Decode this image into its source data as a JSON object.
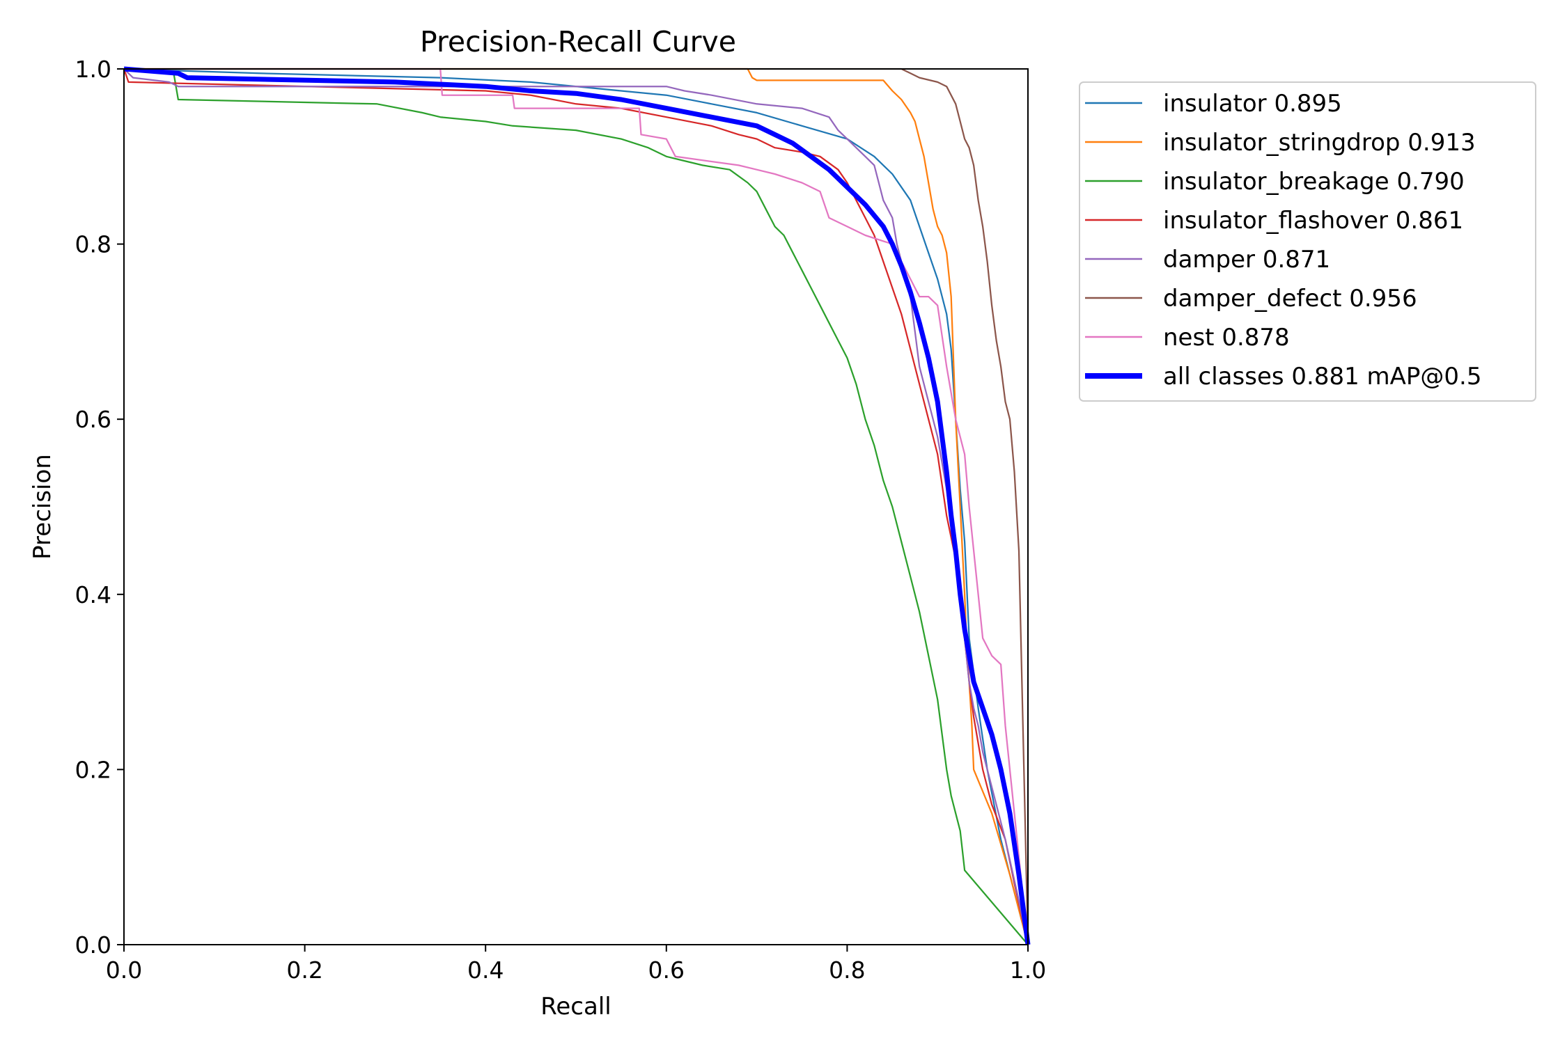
{
  "chart_data": {
    "type": "line",
    "title": "Precision-Recall Curve",
    "xlabel": "Recall",
    "ylabel": "Precision",
    "xlim": [
      0,
      1
    ],
    "ylim": [
      0,
      1
    ],
    "xticks": [
      "0.0",
      "0.2",
      "0.4",
      "0.6",
      "0.8",
      "1.0"
    ],
    "yticks": [
      "0.0",
      "0.2",
      "0.4",
      "0.6",
      "0.8",
      "1.0"
    ],
    "legend_position": "outside-right",
    "series": [
      {
        "name": "insulator",
        "score": "0.895",
        "label": "insulator 0.895",
        "color": "#1f77b4",
        "width": 1.5,
        "points": [
          [
            0,
            1.0
          ],
          [
            0.15,
            0.995
          ],
          [
            0.35,
            0.99
          ],
          [
            0.45,
            0.985
          ],
          [
            0.55,
            0.975
          ],
          [
            0.6,
            0.97
          ],
          [
            0.65,
            0.96
          ],
          [
            0.7,
            0.95
          ],
          [
            0.75,
            0.935
          ],
          [
            0.8,
            0.92
          ],
          [
            0.83,
            0.9
          ],
          [
            0.85,
            0.88
          ],
          [
            0.87,
            0.85
          ],
          [
            0.88,
            0.82
          ],
          [
            0.89,
            0.79
          ],
          [
            0.9,
            0.76
          ],
          [
            0.91,
            0.72
          ],
          [
            0.915,
            0.68
          ],
          [
            0.92,
            0.6
          ],
          [
            0.925,
            0.52
          ],
          [
            0.93,
            0.46
          ],
          [
            0.935,
            0.35
          ],
          [
            0.945,
            0.27
          ],
          [
            0.955,
            0.2
          ],
          [
            0.97,
            0.12
          ],
          [
            0.985,
            0.06
          ],
          [
            1.0,
            0.0
          ]
        ]
      },
      {
        "name": "insulator_stringdrop",
        "score": "0.913",
        "label": "insulator_stringdrop 0.913",
        "color": "#ff7f0e",
        "width": 1.5,
        "points": [
          [
            0,
            1.0
          ],
          [
            0.69,
            1.0
          ],
          [
            0.695,
            0.99
          ],
          [
            0.7,
            0.987
          ],
          [
            0.84,
            0.987
          ],
          [
            0.85,
            0.975
          ],
          [
            0.86,
            0.965
          ],
          [
            0.87,
            0.95
          ],
          [
            0.875,
            0.94
          ],
          [
            0.88,
            0.92
          ],
          [
            0.885,
            0.9
          ],
          [
            0.89,
            0.87
          ],
          [
            0.895,
            0.84
          ],
          [
            0.9,
            0.82
          ],
          [
            0.905,
            0.81
          ],
          [
            0.91,
            0.79
          ],
          [
            0.915,
            0.74
          ],
          [
            0.92,
            0.6
          ],
          [
            0.925,
            0.5
          ],
          [
            0.93,
            0.4
          ],
          [
            0.932,
            0.35
          ],
          [
            0.935,
            0.3
          ],
          [
            0.938,
            0.25
          ],
          [
            0.94,
            0.2
          ],
          [
            0.96,
            0.15
          ],
          [
            0.98,
            0.08
          ],
          [
            1.0,
            0.0
          ]
        ]
      },
      {
        "name": "insulator_breakage",
        "score": "0.790",
        "label": "insulator_breakage 0.790",
        "color": "#2ca02c",
        "width": 1.5,
        "points": [
          [
            0,
            1.0
          ],
          [
            0.055,
            0.995
          ],
          [
            0.06,
            0.965
          ],
          [
            0.28,
            0.96
          ],
          [
            0.33,
            0.95
          ],
          [
            0.35,
            0.945
          ],
          [
            0.4,
            0.94
          ],
          [
            0.43,
            0.935
          ],
          [
            0.5,
            0.93
          ],
          [
            0.55,
            0.92
          ],
          [
            0.58,
            0.91
          ],
          [
            0.6,
            0.9
          ],
          [
            0.62,
            0.895
          ],
          [
            0.64,
            0.89
          ],
          [
            0.67,
            0.885
          ],
          [
            0.69,
            0.87
          ],
          [
            0.7,
            0.86
          ],
          [
            0.71,
            0.84
          ],
          [
            0.72,
            0.82
          ],
          [
            0.73,
            0.81
          ],
          [
            0.74,
            0.79
          ],
          [
            0.75,
            0.77
          ],
          [
            0.76,
            0.75
          ],
          [
            0.77,
            0.73
          ],
          [
            0.78,
            0.71
          ],
          [
            0.79,
            0.69
          ],
          [
            0.8,
            0.67
          ],
          [
            0.81,
            0.64
          ],
          [
            0.82,
            0.6
          ],
          [
            0.83,
            0.57
          ],
          [
            0.84,
            0.53
          ],
          [
            0.85,
            0.5
          ],
          [
            0.86,
            0.46
          ],
          [
            0.87,
            0.42
          ],
          [
            0.88,
            0.38
          ],
          [
            0.89,
            0.33
          ],
          [
            0.9,
            0.28
          ],
          [
            0.905,
            0.24
          ],
          [
            0.91,
            0.2
          ],
          [
            0.915,
            0.17
          ],
          [
            0.92,
            0.15
          ],
          [
            0.925,
            0.13
          ],
          [
            0.93,
            0.085
          ],
          [
            1.0,
            0.0
          ]
        ]
      },
      {
        "name": "insulator_flashover",
        "score": "0.861",
        "label": "insulator_flashover 0.861",
        "color": "#d62728",
        "width": 1.5,
        "points": [
          [
            0,
            1.0
          ],
          [
            0.005,
            0.985
          ],
          [
            0.4,
            0.975
          ],
          [
            0.45,
            0.97
          ],
          [
            0.5,
            0.96
          ],
          [
            0.55,
            0.955
          ],
          [
            0.6,
            0.945
          ],
          [
            0.65,
            0.935
          ],
          [
            0.68,
            0.925
          ],
          [
            0.7,
            0.92
          ],
          [
            0.72,
            0.91
          ],
          [
            0.75,
            0.905
          ],
          [
            0.77,
            0.9
          ],
          [
            0.79,
            0.885
          ],
          [
            0.8,
            0.87
          ],
          [
            0.81,
            0.85
          ],
          [
            0.82,
            0.83
          ],
          [
            0.83,
            0.81
          ],
          [
            0.84,
            0.78
          ],
          [
            0.85,
            0.75
          ],
          [
            0.86,
            0.72
          ],
          [
            0.87,
            0.68
          ],
          [
            0.88,
            0.64
          ],
          [
            0.89,
            0.6
          ],
          [
            0.9,
            0.56
          ],
          [
            0.91,
            0.49
          ],
          [
            0.92,
            0.44
          ],
          [
            0.925,
            0.4
          ],
          [
            0.93,
            0.35
          ],
          [
            0.935,
            0.3
          ],
          [
            0.94,
            0.26
          ],
          [
            0.945,
            0.23
          ],
          [
            0.95,
            0.2
          ],
          [
            0.96,
            0.16
          ],
          [
            0.975,
            0.12
          ],
          [
            0.985,
            0.07
          ],
          [
            1.0,
            0.0
          ]
        ]
      },
      {
        "name": "damper",
        "score": "0.871",
        "label": "damper 0.871",
        "color": "#9467bd",
        "width": 1.5,
        "points": [
          [
            0,
            1.0
          ],
          [
            0.01,
            0.99
          ],
          [
            0.05,
            0.985
          ],
          [
            0.06,
            0.98
          ],
          [
            0.3,
            0.98
          ],
          [
            0.5,
            0.98
          ],
          [
            0.6,
            0.98
          ],
          [
            0.62,
            0.975
          ],
          [
            0.65,
            0.97
          ],
          [
            0.7,
            0.96
          ],
          [
            0.75,
            0.955
          ],
          [
            0.78,
            0.945
          ],
          [
            0.79,
            0.93
          ],
          [
            0.8,
            0.92
          ],
          [
            0.81,
            0.91
          ],
          [
            0.82,
            0.9
          ],
          [
            0.83,
            0.89
          ],
          [
            0.835,
            0.87
          ],
          [
            0.84,
            0.85
          ],
          [
            0.85,
            0.83
          ],
          [
            0.855,
            0.8
          ],
          [
            0.86,
            0.78
          ],
          [
            0.87,
            0.74
          ],
          [
            0.875,
            0.7
          ],
          [
            0.88,
            0.66
          ],
          [
            0.89,
            0.62
          ],
          [
            0.9,
            0.58
          ],
          [
            0.905,
            0.55
          ],
          [
            0.91,
            0.52
          ],
          [
            0.915,
            0.48
          ],
          [
            0.92,
            0.44
          ],
          [
            0.925,
            0.4
          ],
          [
            0.93,
            0.35
          ],
          [
            0.935,
            0.3
          ],
          [
            0.94,
            0.27
          ],
          [
            0.945,
            0.25
          ],
          [
            0.95,
            0.22
          ],
          [
            0.96,
            0.18
          ],
          [
            0.975,
            0.12
          ],
          [
            0.99,
            0.05
          ],
          [
            1.0,
            0.0
          ]
        ]
      },
      {
        "name": "damper_defect",
        "score": "0.956",
        "label": "damper_defect 0.956",
        "color": "#8c564b",
        "width": 1.5,
        "points": [
          [
            0,
            1.0
          ],
          [
            0.86,
            1.0
          ],
          [
            0.87,
            0.995
          ],
          [
            0.88,
            0.99
          ],
          [
            0.9,
            0.985
          ],
          [
            0.91,
            0.98
          ],
          [
            0.92,
            0.96
          ],
          [
            0.925,
            0.94
          ],
          [
            0.93,
            0.92
          ],
          [
            0.935,
            0.91
          ],
          [
            0.94,
            0.89
          ],
          [
            0.945,
            0.85
          ],
          [
            0.95,
            0.82
          ],
          [
            0.955,
            0.78
          ],
          [
            0.96,
            0.73
          ],
          [
            0.965,
            0.69
          ],
          [
            0.97,
            0.66
          ],
          [
            0.975,
            0.62
          ],
          [
            0.98,
            0.6
          ],
          [
            0.985,
            0.54
          ],
          [
            0.99,
            0.45
          ],
          [
            1.0,
            0.0
          ]
        ]
      },
      {
        "name": "nest",
        "score": "0.878",
        "label": "nest 0.878",
        "color": "#e377c2",
        "width": 1.5,
        "points": [
          [
            0,
            1.0
          ],
          [
            0.35,
            1.0
          ],
          [
            0.352,
            0.97
          ],
          [
            0.43,
            0.97
          ],
          [
            0.432,
            0.955
          ],
          [
            0.57,
            0.955
          ],
          [
            0.572,
            0.925
          ],
          [
            0.6,
            0.92
          ],
          [
            0.61,
            0.9
          ],
          [
            0.68,
            0.89
          ],
          [
            0.7,
            0.885
          ],
          [
            0.72,
            0.88
          ],
          [
            0.75,
            0.87
          ],
          [
            0.77,
            0.86
          ],
          [
            0.78,
            0.83
          ],
          [
            0.8,
            0.82
          ],
          [
            0.82,
            0.81
          ],
          [
            0.85,
            0.8
          ],
          [
            0.86,
            0.78
          ],
          [
            0.87,
            0.76
          ],
          [
            0.88,
            0.74
          ],
          [
            0.89,
            0.74
          ],
          [
            0.9,
            0.73
          ],
          [
            0.91,
            0.66
          ],
          [
            0.92,
            0.6
          ],
          [
            0.93,
            0.56
          ],
          [
            0.935,
            0.5
          ],
          [
            0.94,
            0.45
          ],
          [
            0.945,
            0.4
          ],
          [
            0.95,
            0.35
          ],
          [
            0.96,
            0.33
          ],
          [
            0.97,
            0.32
          ],
          [
            0.975,
            0.25
          ],
          [
            0.98,
            0.2
          ],
          [
            0.99,
            0.1
          ],
          [
            1.0,
            0.0
          ]
        ]
      },
      {
        "name": "all classes",
        "score": "0.881 mAP@0.5",
        "label": "all classes 0.881 mAP@0.5",
        "color": "#0000ff",
        "width": 7,
        "points": [
          [
            0,
            1.0
          ],
          [
            0.06,
            0.995
          ],
          [
            0.07,
            0.99
          ],
          [
            0.3,
            0.985
          ],
          [
            0.4,
            0.98
          ],
          [
            0.45,
            0.975
          ],
          [
            0.5,
            0.972
          ],
          [
            0.55,
            0.965
          ],
          [
            0.6,
            0.955
          ],
          [
            0.65,
            0.945
          ],
          [
            0.7,
            0.935
          ],
          [
            0.72,
            0.925
          ],
          [
            0.74,
            0.915
          ],
          [
            0.76,
            0.9
          ],
          [
            0.78,
            0.885
          ],
          [
            0.8,
            0.865
          ],
          [
            0.82,
            0.845
          ],
          [
            0.84,
            0.82
          ],
          [
            0.85,
            0.8
          ],
          [
            0.86,
            0.775
          ],
          [
            0.87,
            0.745
          ],
          [
            0.88,
            0.71
          ],
          [
            0.89,
            0.67
          ],
          [
            0.9,
            0.62
          ],
          [
            0.905,
            0.58
          ],
          [
            0.91,
            0.54
          ],
          [
            0.915,
            0.49
          ],
          [
            0.92,
            0.45
          ],
          [
            0.925,
            0.4
          ],
          [
            0.93,
            0.36
          ],
          [
            0.935,
            0.33
          ],
          [
            0.94,
            0.3
          ],
          [
            0.95,
            0.27
          ],
          [
            0.96,
            0.24
          ],
          [
            0.97,
            0.2
          ],
          [
            0.98,
            0.15
          ],
          [
            0.99,
            0.08
          ],
          [
            1.0,
            0.0
          ]
        ]
      }
    ]
  }
}
